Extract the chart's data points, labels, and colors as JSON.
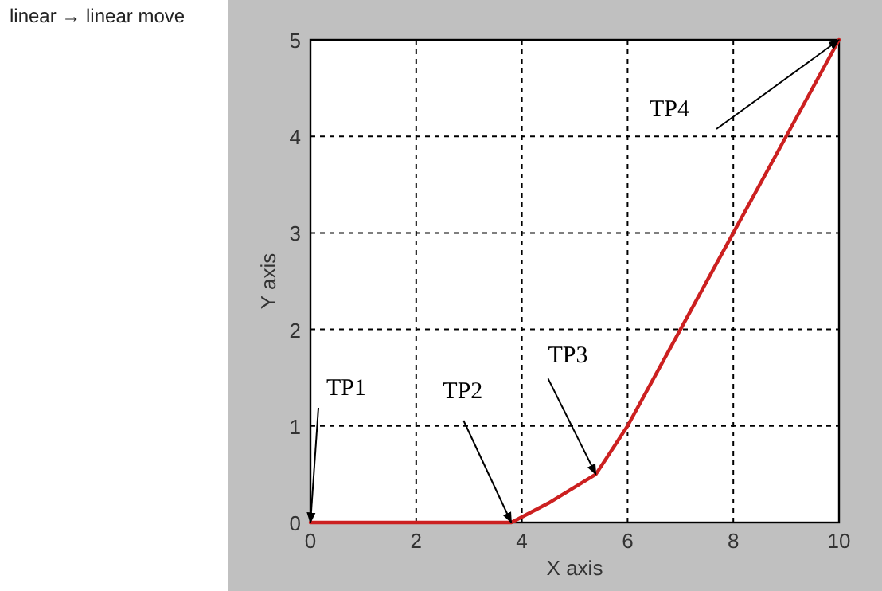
{
  "chart_data": {
    "type": "line",
    "title": "linear → linear move",
    "xlabel": "X axis",
    "ylabel": "Y axis",
    "x": [
      0,
      3.8,
      4.5,
      5.4,
      6,
      7,
      8,
      9,
      10
    ],
    "series": [
      {
        "color": "#cc2020",
        "values": [
          0,
          0,
          0.2,
          0.5,
          1,
          2,
          3,
          4,
          5
        ]
      }
    ],
    "xlim": [
      0,
      10
    ],
    "ylim": [
      0,
      5
    ],
    "xticks": [
      0,
      2,
      4,
      6,
      8,
      10
    ],
    "yticks": [
      0,
      1,
      2,
      3,
      4,
      5
    ],
    "grid": true,
    "line_style": "solid",
    "marker": "none",
    "annotations": [
      {
        "text": "TP1",
        "x": 0,
        "y": 0
      },
      {
        "text": "TP2",
        "x": 3.8,
        "y": 0
      },
      {
        "text": "TP3",
        "x": 5.4,
        "y": 0.5
      },
      {
        "text": "TP4",
        "x": 10,
        "y": 5
      }
    ]
  }
}
